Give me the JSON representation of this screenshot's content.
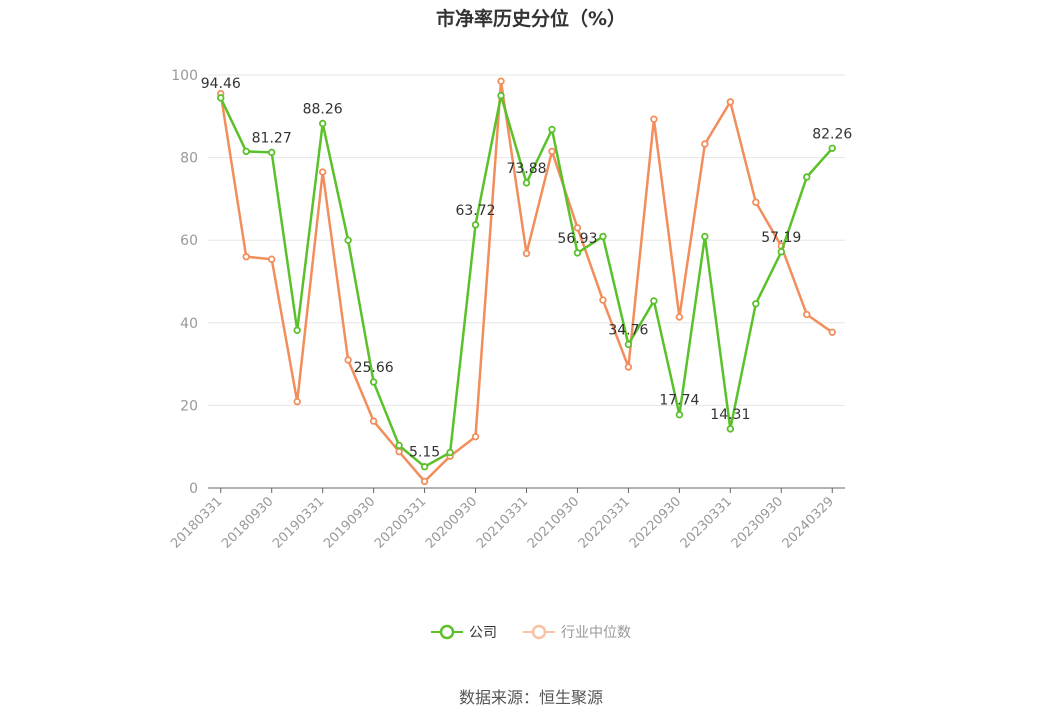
{
  "chart_data": {
    "type": "line",
    "title": "市净率历史分位（%）",
    "ylim": [
      0,
      100
    ],
    "yticks": [
      0,
      20,
      40,
      60,
      80,
      100
    ],
    "x_tick_labels": [
      "20180331",
      "20180930",
      "20190331",
      "20190930",
      "20200331",
      "20200930",
      "20210331",
      "20210930",
      "20220331",
      "20220930",
      "20230331",
      "20230930",
      "20240329"
    ],
    "x": [
      "20180331",
      "20180630",
      "20180930",
      "20181231",
      "20190331",
      "20190630",
      "20190930",
      "20191231",
      "20200331",
      "20200630",
      "20200930",
      "20201231",
      "20210331",
      "20210630",
      "20210930",
      "20211231",
      "20220331",
      "20220630",
      "20220930",
      "20221231",
      "20230331",
      "20230630",
      "20230930",
      "20231231",
      "20240329"
    ],
    "series": [
      {
        "name": "公司",
        "color": "#5ac12a",
        "values": [
          94.46,
          81.5,
          81.27,
          38.2,
          88.26,
          60.0,
          25.66,
          10.3,
          5.15,
          8.6,
          63.72,
          95.0,
          73.88,
          86.8,
          56.93,
          60.9,
          34.76,
          45.3,
          17.74,
          60.9,
          14.31,
          44.6,
          57.19,
          75.3,
          82.26
        ]
      },
      {
        "name": "行业中位数",
        "color": "#f28d5c",
        "values": [
          95.5,
          56.0,
          55.4,
          20.9,
          76.5,
          31.0,
          16.2,
          8.8,
          1.6,
          7.7,
          12.4,
          98.5,
          56.8,
          81.5,
          63.0,
          45.5,
          29.3,
          89.3,
          41.4,
          83.3,
          93.5,
          69.2,
          58.6,
          42.0,
          37.7
        ]
      }
    ],
    "data_labels": [
      {
        "index": 0,
        "text": "94.46"
      },
      {
        "index": 2,
        "text": "81.27"
      },
      {
        "index": 4,
        "text": "88.26"
      },
      {
        "index": 6,
        "text": "25.66"
      },
      {
        "index": 8,
        "text": "5.15"
      },
      {
        "index": 10,
        "text": "63.72"
      },
      {
        "index": 12,
        "text": "73.88"
      },
      {
        "index": 14,
        "text": "56.93"
      },
      {
        "index": 16,
        "text": "34.76"
      },
      {
        "index": 18,
        "text": "17.74"
      },
      {
        "index": 20,
        "text": "14.31"
      },
      {
        "index": 22,
        "text": "57.19"
      },
      {
        "index": 24,
        "text": "82.26"
      }
    ],
    "grid": true,
    "legend_position": "bottom-center"
  },
  "legend": {
    "company": "公司",
    "industry": "行业中位数"
  },
  "source_text": "数据来源：恒生聚源"
}
